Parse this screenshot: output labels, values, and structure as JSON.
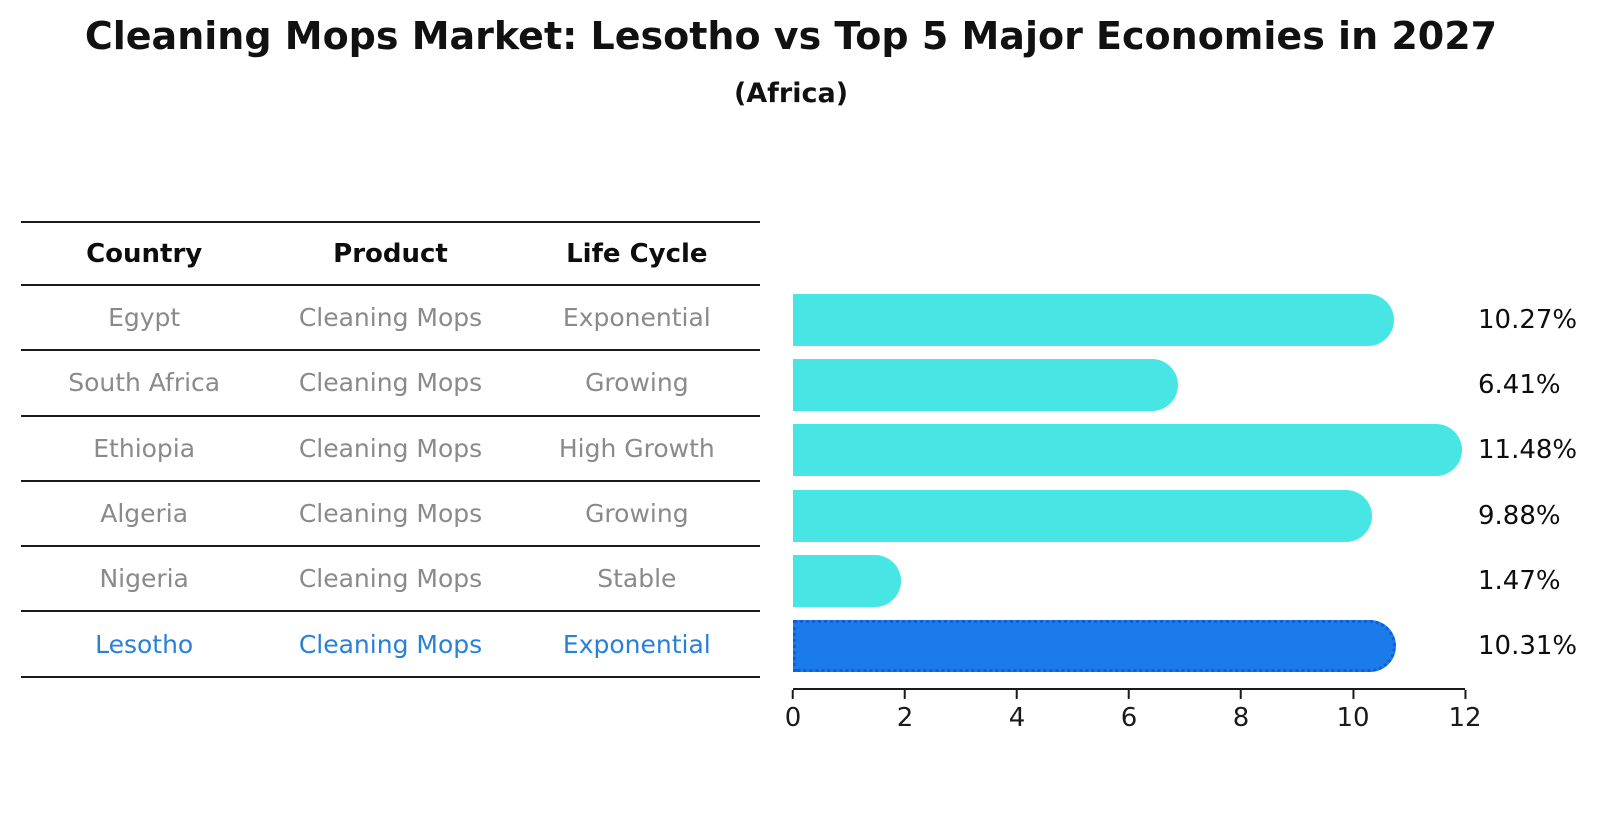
{
  "title": "Cleaning Mops Market: Lesotho vs Top 5 Major Economies in 2027",
  "subtitle": "(Africa)",
  "table": {
    "headers": [
      "Country",
      "Product",
      "Life Cycle"
    ],
    "rows": [
      {
        "country": "Egypt",
        "product": "Cleaning Mops",
        "life_cycle": "Exponential",
        "highlight": false
      },
      {
        "country": "South Africa",
        "product": "Cleaning Mops",
        "life_cycle": "Growing",
        "highlight": false
      },
      {
        "country": "Ethiopia",
        "product": "Cleaning Mops",
        "life_cycle": "High Growth",
        "highlight": false
      },
      {
        "country": "Algeria",
        "product": "Cleaning Mops",
        "life_cycle": "Growing",
        "highlight": false
      },
      {
        "country": "Nigeria",
        "product": "Cleaning Mops",
        "life_cycle": "Stable",
        "highlight": false
      },
      {
        "country": "Lesotho",
        "product": "Cleaning Mops",
        "life_cycle": "Exponential",
        "highlight": true
      }
    ]
  },
  "chart_data": {
    "type": "bar",
    "orientation": "horizontal",
    "title": "Cleaning Mops Market: Lesotho vs Top 5 Major Economies in 2027",
    "subtitle": "(Africa)",
    "categories": [
      "Egypt",
      "South Africa",
      "Ethiopia",
      "Algeria",
      "Nigeria",
      "Lesotho"
    ],
    "values": [
      10.27,
      6.41,
      11.48,
      9.88,
      1.47,
      10.31
    ],
    "value_labels": [
      "10.27%",
      "6.41%",
      "11.48%",
      "9.88%",
      "1.47%",
      "10.31%"
    ],
    "xlabel": "",
    "ylabel": "",
    "xlim": [
      0,
      12
    ],
    "xticks": [
      0,
      2,
      4,
      6,
      8,
      10,
      12
    ],
    "grid": false,
    "legend": false,
    "highlight_index": 5
  },
  "colors": {
    "bar": "#48E5E5",
    "highlight_bar": "#1B7CE9",
    "highlight_border": "#0E5FD9",
    "highlight_text": "#2980D9",
    "table_text": "#8A8A8A"
  }
}
